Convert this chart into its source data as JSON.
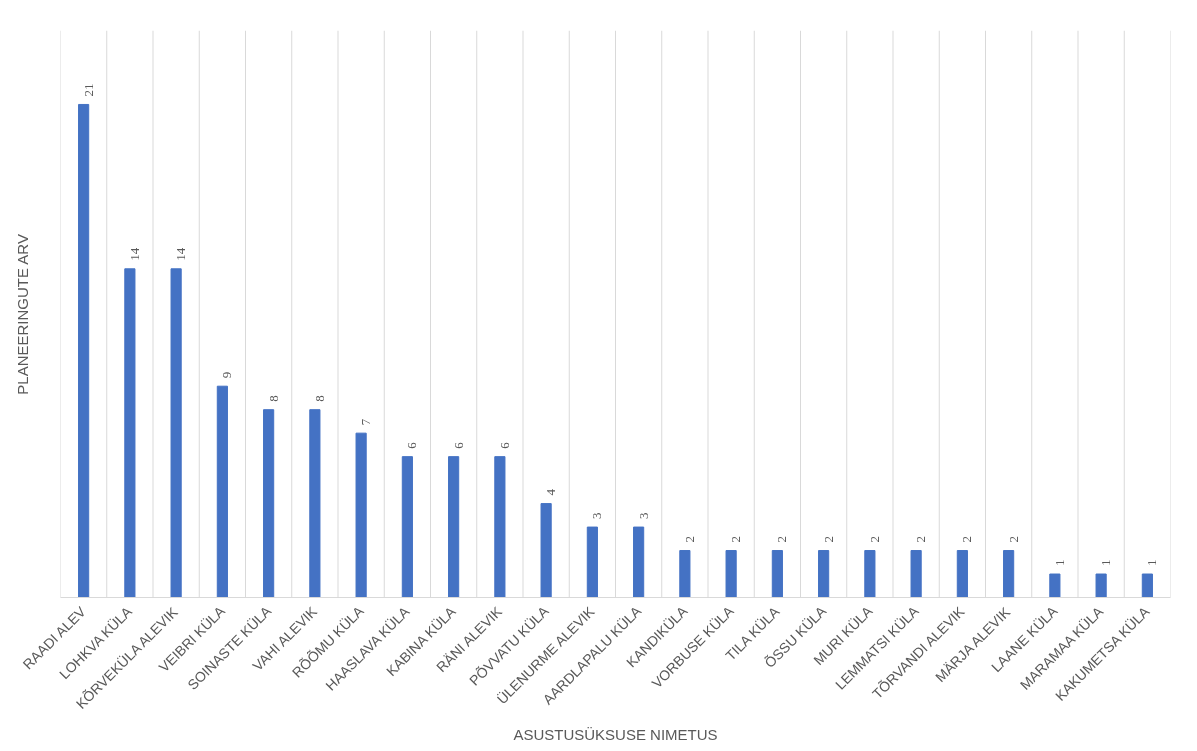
{
  "chart_data": {
    "type": "bar",
    "xlabel": "ASUSTUSÜKSUSE NIMETUS",
    "ylabel": "PLANEERINGUTE ARV",
    "categories": [
      "RAADI ALEV",
      "LOHKVA KÜLA",
      "KÕRVEKÜLA ALEVIK",
      "VEIBRI KÜLA",
      "SOINASTE KÜLA",
      "VAHI ALEVIK",
      "RÕÕMU KÜLA",
      "HAASLAVA KÜLA",
      "KABINA KÜLA",
      "RÄNI ALEVIK",
      "PÕVVATU KÜLA",
      "ÜLENURME ALEVIK",
      "AARDLAPALU KÜLA",
      "KANDIKÜLA",
      "VORBUSE KÜLA",
      "TILA KÜLA",
      "ÕSSU KÜLA",
      "MURI KÜLA",
      "LEMMATSI KÜLA",
      "TÕRVANDI ALEVIK",
      "MÄRJA ALEVIK",
      "LAANE KÜLA",
      "MARAMAA KÜLA",
      "KAKUMETSA KÜLA"
    ],
    "values": [
      21,
      14,
      14,
      9,
      8,
      8,
      7,
      6,
      6,
      6,
      4,
      3,
      3,
      2,
      2,
      2,
      2,
      2,
      2,
      2,
      2,
      1,
      1,
      1
    ],
    "color": "#4472c4",
    "data_labels": true,
    "grid": "x"
  }
}
